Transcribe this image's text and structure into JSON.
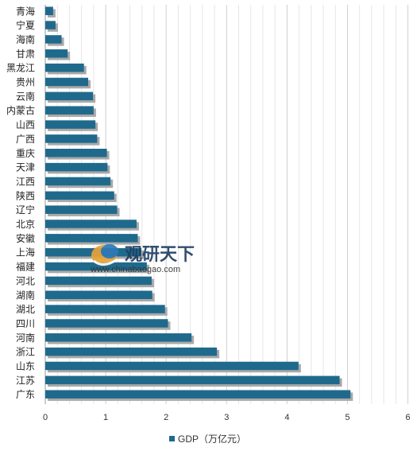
{
  "chart_data": {
    "type": "bar",
    "orientation": "horizontal",
    "categories": [
      "青海",
      "宁夏",
      "海南",
      "甘肃",
      "黑龙江",
      "贵州",
      "云南",
      "内蒙古",
      "山西",
      "广西",
      "重庆",
      "天津",
      "江西",
      "陕西",
      "辽宁",
      "北京",
      "安徽",
      "上海",
      "福建",
      "河北",
      "湖南",
      "湖北",
      "四川",
      "河南",
      "浙江",
      "山东",
      "江苏",
      "广东"
    ],
    "series": [
      {
        "name": "GDP（万亿元）",
        "values": [
          0.13,
          0.17,
          0.27,
          0.37,
          0.64,
          0.71,
          0.79,
          0.8,
          0.83,
          0.86,
          1.02,
          1.03,
          1.08,
          1.14,
          1.19,
          1.51,
          1.53,
          1.59,
          1.68,
          1.76,
          1.77,
          1.98,
          2.03,
          2.42,
          2.84,
          4.19,
          4.87,
          5.05
        ]
      }
    ],
    "xlim": [
      0,
      6
    ],
    "xticks": [
      "0",
      "1",
      "2",
      "3",
      "4",
      "5",
      "6"
    ],
    "grid": true,
    "legend": "bottom",
    "color": "#1f6a8c",
    "shadow_color": "#a9a9a9"
  },
  "watermark": {
    "title": "观研天下",
    "url": "www.chinabaogao.com"
  }
}
